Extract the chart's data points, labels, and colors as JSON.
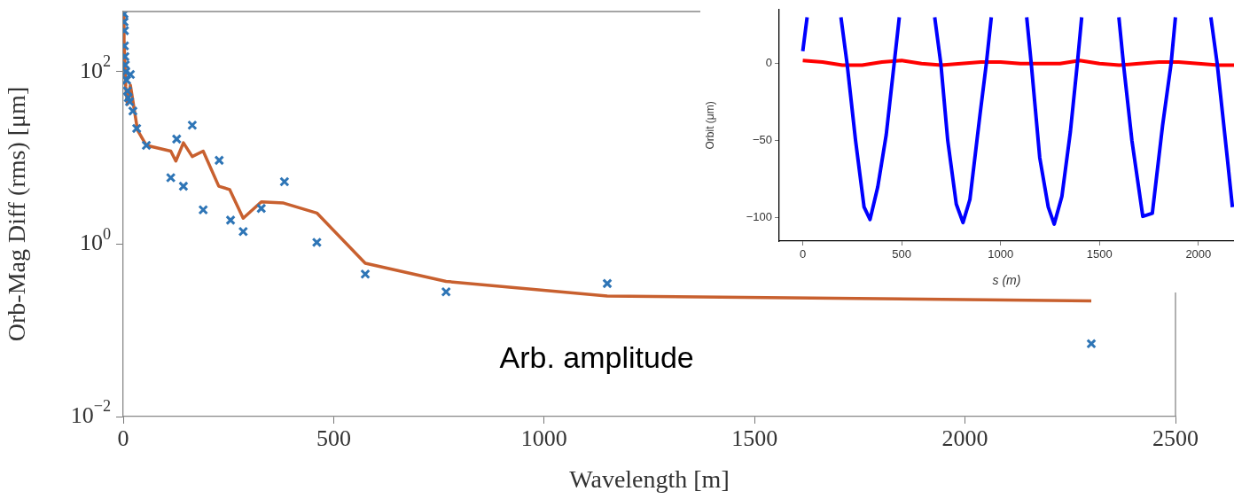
{
  "chart_data": [
    {
      "type": "scatter",
      "xlabel": "Wavelength [m]",
      "ylabel": "Orb-Mag Diff (rms) [μm]",
      "log": "y",
      "xlim": [
        0,
        2500
      ],
      "xticks": [
        0,
        500,
        1000,
        1500,
        2000,
        2500
      ],
      "ylim": [
        0.01,
        500
      ],
      "yticks": [
        {
          "value": 0.01,
          "label": "10$^{−2}$"
        },
        {
          "value": 1,
          "label": "10$^{0}$"
        },
        {
          "value": 100,
          "label": "10$^{2}$"
        }
      ],
      "annotations": [
        "Arb. amplitude"
      ],
      "series": [
        {
          "type": "scatter",
          "marker": "cross",
          "color": "#2e75b6",
          "x": [
            2,
            2,
            3,
            3,
            4,
            5,
            6,
            8,
            10,
            12,
            15,
            17,
            23,
            32,
            55,
            113,
            127,
            143,
            164,
            190,
            228,
            255,
            285,
            328,
            383,
            460,
            575,
            767,
            1150,
            2300
          ],
          "values": [
            470,
            380,
            300,
            200,
            150,
            120,
            100,
            80,
            60,
            50,
            45,
            93,
            35,
            22,
            14,
            5.9,
            16.6,
            4.7,
            24,
            2.5,
            9.4,
            1.9,
            1.4,
            2.6,
            5.3,
            1.05,
            0.45,
            0.28,
            0.35,
            0.07
          ]
        },
        {
          "type": "line",
          "marker": "none",
          "color": "#c8602f",
          "x": [
            0,
            2,
            6,
            10,
            17,
            34,
            55,
            113,
            125,
            143,
            164,
            190,
            227,
            253,
            285,
            328,
            381,
            460,
            575,
            767,
            1150,
            2300
          ],
          "values": [
            460,
            237,
            67,
            42,
            70,
            21,
            14,
            12,
            9.2,
            15,
            10.4,
            12,
            4.7,
            4.3,
            2.0,
            3.1,
            3.0,
            2.3,
            0.6,
            0.37,
            0.25,
            0.22
          ]
        }
      ]
    },
    {
      "type": "line",
      "xlabel": "s (m)",
      "ylabel": "Orbit (μm)",
      "xlim": [
        -119,
        2180
      ],
      "xticks": [
        0,
        500,
        1000,
        1500,
        2000
      ],
      "ylim": [
        -115,
        35
      ],
      "yticks": [
        {
          "value": -100,
          "label": "−100"
        },
        {
          "value": -50,
          "label": "−50"
        },
        0
      ],
      "series": [
        {
          "color": "#0000ff",
          "x": [
            0,
            22,
            100,
            193,
            224,
            267,
            310,
            340,
            379,
            422,
            462,
            488,
            575,
            667,
            698,
            733,
            776,
            810,
            845,
            896,
            928,
            953,
            1040,
            1132,
            1155,
            1198,
            1241,
            1271,
            1310,
            1353,
            1388,
            1410,
            1500,
            1598,
            1621,
            1664,
            1719,
            1767,
            1819,
            1862,
            1884,
            1975,
            2063,
            2095,
            2146,
            2172
          ],
          "values": [
            8,
            30,
            null,
            30,
            0,
            -50,
            -93,
            -101,
            -80,
            -46,
            0,
            30,
            null,
            30,
            0,
            -50,
            -91,
            -103,
            -88,
            -33,
            0,
            30,
            null,
            30,
            0,
            -61,
            -93,
            -104,
            -86,
            -44,
            0,
            30,
            null,
            30,
            0,
            -50,
            -99,
            -97,
            -40,
            0,
            30,
            null,
            30,
            0,
            -61,
            -93
          ]
        },
        {
          "color": "#ff0000",
          "x": [
            0,
            100,
            200,
            300,
            400,
            500,
            600,
            700,
            800,
            900,
            1000,
            1100,
            1200,
            1300,
            1400,
            1500,
            1600,
            1700,
            1800,
            1900,
            2000,
            2100,
            2180
          ],
          "values": [
            2,
            1,
            -1,
            -1,
            1,
            2,
            0,
            -1,
            0,
            1,
            1,
            0,
            0,
            0,
            2,
            0,
            -1,
            0,
            1,
            1,
            0,
            -1,
            -1
          ]
        }
      ]
    }
  ]
}
